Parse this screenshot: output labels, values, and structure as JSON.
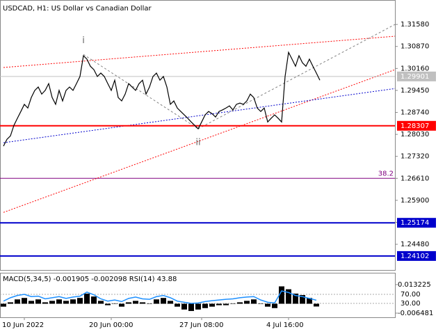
{
  "chart_data": {
    "type": "line",
    "title": "USDCAD, H1:  US Dollar vs Canadian Dollar",
    "categories": [
      null,
      null,
      null,
      null,
      null,
      null,
      "10 Jun 2022",
      null,
      null,
      null,
      null,
      null,
      null,
      null,
      null,
      null,
      null,
      null,
      null,
      null,
      null,
      null,
      null,
      null,
      null,
      null,
      null,
      null,
      null,
      null,
      null,
      "20 Jun 00:00",
      null,
      null,
      null,
      null,
      null,
      null,
      null,
      null,
      null,
      null,
      null,
      null,
      null,
      null,
      null,
      null,
      null,
      null,
      null,
      null,
      null,
      null,
      null,
      null,
      null,
      "27 Jun 08:00",
      null,
      null,
      null,
      null,
      null,
      null,
      null,
      null,
      null,
      null,
      null,
      null,
      null,
      null,
      null,
      null,
      null,
      null,
      null,
      null,
      null,
      null,
      null,
      null,
      "4 Jul 16:00",
      null,
      null,
      null,
      null,
      null,
      null,
      null,
      null,
      null
    ],
    "series": [
      {
        "name": "USDCAD",
        "color": "#000000",
        "values": [
          1.2765,
          1.2787,
          1.2798,
          1.2832,
          1.2855,
          1.2877,
          1.29,
          1.2888,
          1.2922,
          1.2945,
          1.2956,
          1.2933,
          1.2945,
          1.2967,
          1.2922,
          1.29,
          1.2945,
          1.2911,
          1.2945,
          1.2956,
          1.2945,
          1.2967,
          1.299,
          1.3057,
          1.3046,
          1.3023,
          1.3012,
          1.299,
          1.3001,
          1.299,
          1.2967,
          1.2945,
          1.2978,
          1.2922,
          1.2911,
          1.2933,
          1.2967,
          1.2956,
          1.2945,
          1.2967,
          1.2978,
          1.2933,
          1.2956,
          1.299,
          1.3001,
          1.2978,
          1.299,
          1.2956,
          1.29,
          1.2911,
          1.2888,
          1.2877,
          1.2866,
          1.2855,
          1.2843,
          1.2832,
          1.2821,
          1.2843,
          1.2866,
          1.2877,
          1.287,
          1.2859,
          1.2877,
          1.2882,
          1.2888,
          1.2895,
          1.2882,
          1.29,
          1.2904,
          1.29,
          1.2911,
          1.2933,
          1.2922,
          1.2888,
          1.2877,
          1.2888,
          1.2843,
          1.2855,
          1.2866,
          1.2855,
          1.2843,
          1.299,
          1.3068,
          1.3046,
          1.3023,
          1.3057,
          1.3034,
          1.3023,
          1.3046,
          1.3023,
          1.3001,
          1.2978
        ]
      }
    ],
    "ylim": [
      1.2365,
      1.3237
    ],
    "yticks": [
      {
        "value": 1.3158,
        "label": "1.31580"
      },
      {
        "value": 1.3087,
        "label": "1.30870"
      },
      {
        "value": 1.3016,
        "label": "1.30160"
      },
      {
        "value": 1.2945,
        "label": "1.29450"
      },
      {
        "value": 1.2874,
        "label": "1.28740"
      },
      {
        "value": 1.2803,
        "label": "1.28030"
      },
      {
        "value": 1.2732,
        "label": "1.27320"
      },
      {
        "value": 1.2661,
        "label": "1.26610"
      },
      {
        "value": 1.259,
        "label": "1.25900"
      },
      {
        "value": 1.2519,
        "label": "1.25190"
      },
      {
        "value": 1.2448,
        "label": "1.24480"
      }
    ],
    "levels": [
      {
        "value": 1.29901,
        "label": "1.29901",
        "color": "#c0c0c0"
      },
      {
        "value": 1.28307,
        "label": "1.28307",
        "color": "#ff0000"
      },
      {
        "value": 1.25174,
        "label": "1.25174",
        "color": "#0000cc"
      },
      {
        "value": 1.24102,
        "label": "1.24102",
        "color": "#0000cc"
      }
    ],
    "fibo": {
      "name": "38.2",
      "value": 1.2661,
      "color": "#800080"
    },
    "trendlines": [
      {
        "x": [
          0,
          112.6
        ],
        "prices": [
          1.3019,
          1.312
        ],
        "color": "#ff0000",
        "dash": "2,2"
      },
      {
        "x": [
          0,
          112.6
        ],
        "prices": [
          1.2551,
          1.3012
        ],
        "color": "#ff0000",
        "dash": "2,2"
      },
      {
        "x": [
          0,
          112.6
        ],
        "prices": [
          1.2776,
          1.2951
        ],
        "color": "#0000cc",
        "dash": "2,2"
      },
      {
        "x": [
          23,
          56
        ],
        "prices": [
          1.3061,
          1.2821
        ],
        "color": "#808080",
        "dash": "3,3"
      },
      {
        "x": [
          56,
          112.6
        ],
        "prices": [
          1.2821,
          1.3158
        ],
        "color": "#808080",
        "dash": "3,3"
      }
    ],
    "annotations": [
      {
        "text": "i",
        "x": 23,
        "price": 1.3106
      },
      {
        "text": "ii",
        "x": 56,
        "price": 1.2776
      }
    ],
    "indicator": {
      "label": "MACD(5,34,5) -0.001905 -0.002098 RSI(14) 43.88",
      "macd": {
        "color": "#000000",
        "values": [
          -0.002,
          0.001,
          0.003,
          0.004,
          0.002,
          0.003,
          0.001,
          0.002,
          0.003,
          0.002,
          0.003,
          0.004,
          0.007,
          0.005,
          0.002,
          -0.001,
          0.0,
          -0.002,
          0.001,
          0.002,
          0.001,
          0.0,
          0.003,
          0.004,
          0.002,
          -0.002,
          -0.004,
          -0.005,
          -0.004,
          -0.003,
          -0.002,
          -0.001,
          -0.001,
          0.0,
          0.001,
          0.002,
          0.003,
          0.0,
          -0.002,
          -0.003,
          0.012,
          0.01,
          0.007,
          0.006,
          0.004,
          -0.0019
        ]
      },
      "rsi": {
        "color": "#1e90ff",
        "axis": "y2",
        "values": [
          40,
          55,
          65,
          70,
          60,
          62,
          50,
          55,
          60,
          52,
          58,
          62,
          80,
          68,
          50,
          40,
          45,
          38,
          52,
          58,
          50,
          48,
          60,
          65,
          55,
          40,
          35,
          30,
          32,
          38,
          42,
          45,
          48,
          50,
          55,
          58,
          60,
          45,
          35,
          32,
          85,
          78,
          65,
          60,
          52,
          44
        ]
      },
      "ylim": [
        -0.00936,
        0.01947
      ],
      "yticks": [
        0.013225,
        -0.006481
      ],
      "y2lim": [
        -31.5,
        153
      ],
      "y2ticks": [
        {
          "value": 70,
          "label": "70.00"
        },
        {
          "value": 30,
          "label": "30.00"
        }
      ]
    }
  }
}
